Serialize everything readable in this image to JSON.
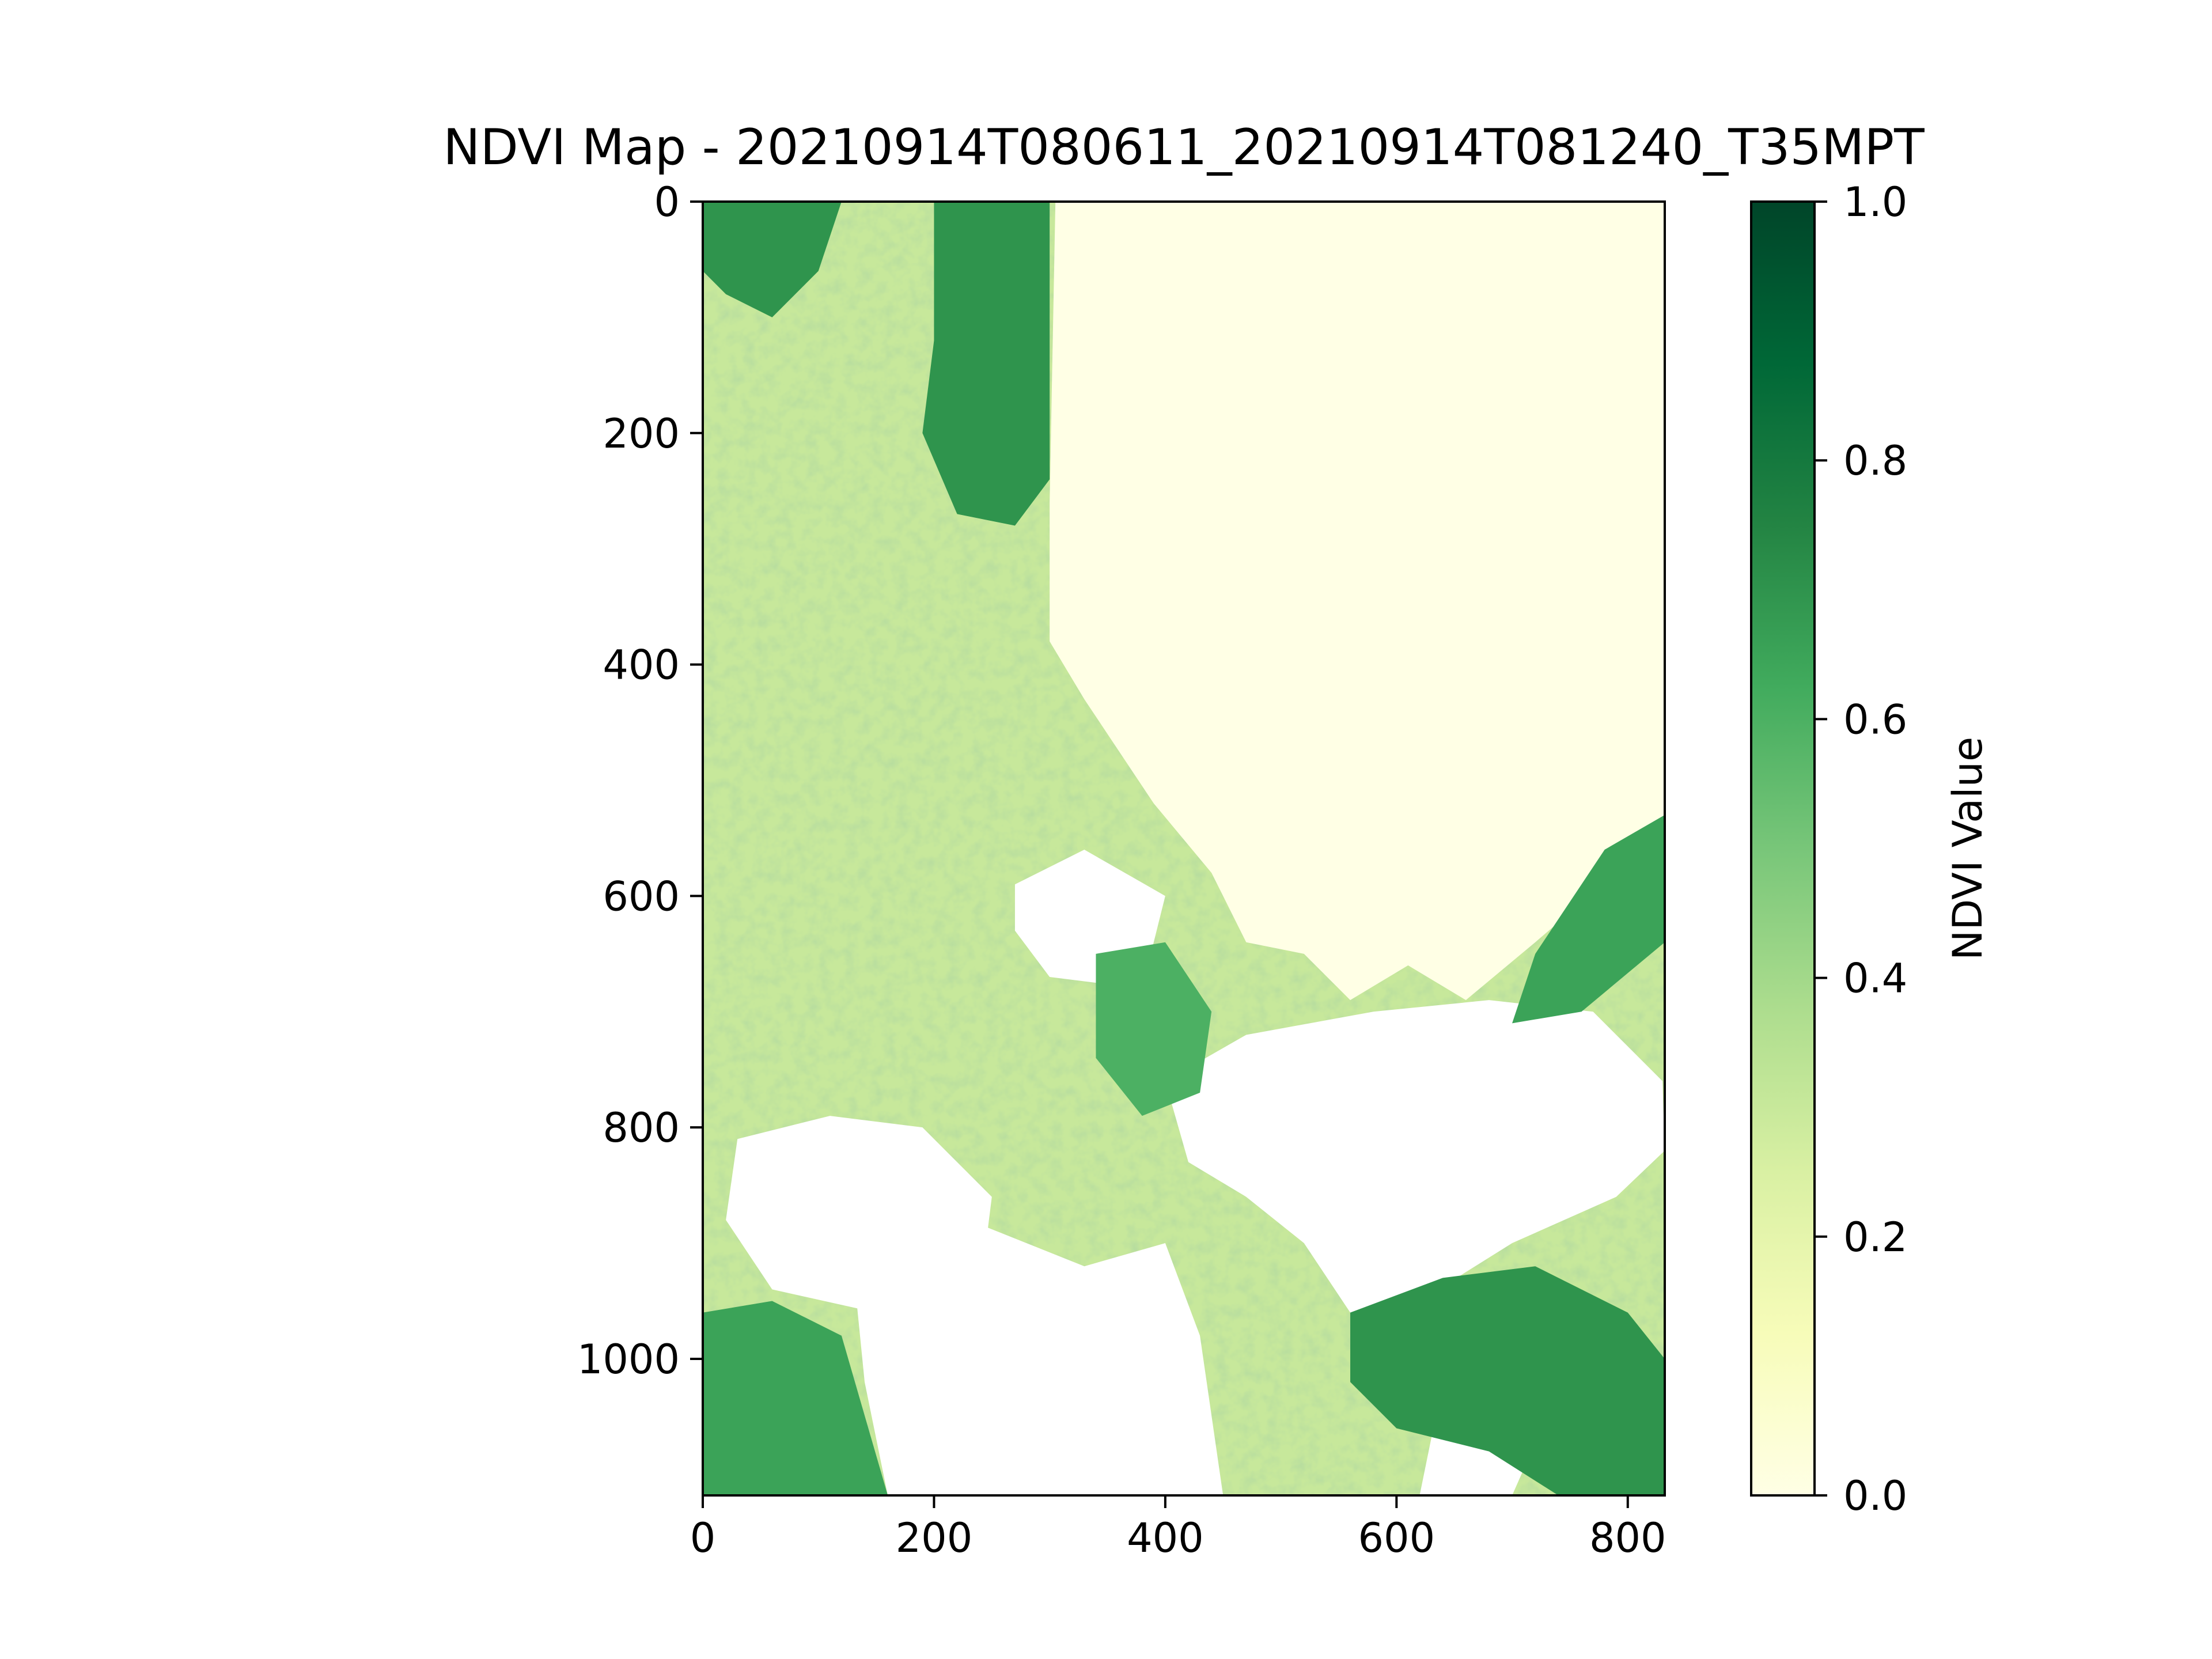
{
  "chart_data": {
    "type": "heatmap",
    "title": "NDVI Map - 20210914T080611_20210914T081240_T35MPT",
    "colormap": "YlGn",
    "image_extent": {
      "x": [
        0,
        832
      ],
      "y": [
        0,
        1118
      ]
    },
    "x_axis": {
      "ticks": [
        0,
        200,
        400,
        600,
        800
      ],
      "tick_labels": [
        "0",
        "200",
        "400",
        "600",
        "800"
      ],
      "lim": [
        0,
        832
      ]
    },
    "y_axis": {
      "ticks": [
        0,
        200,
        400,
        600,
        800,
        1000
      ],
      "tick_labels": [
        "0",
        "200",
        "400",
        "600",
        "800",
        "1000"
      ],
      "lim": [
        1118,
        0
      ],
      "inverted": true
    },
    "colorbar": {
      "label": "NDVI Value",
      "range": [
        0,
        1
      ],
      "ticks": [
        0.0,
        0.2,
        0.4,
        0.6,
        0.8,
        1.0
      ],
      "tick_labels": [
        "0.0",
        "0.2",
        "0.4",
        "0.6",
        "0.8",
        "1.0"
      ],
      "color_stops": [
        {
          "v": 0.0,
          "color": "#ffffe5"
        },
        {
          "v": 0.125,
          "color": "#f7fcb9"
        },
        {
          "v": 0.25,
          "color": "#d9f0a3"
        },
        {
          "v": 0.375,
          "color": "#addd8e"
        },
        {
          "v": 0.5,
          "color": "#78c679"
        },
        {
          "v": 0.625,
          "color": "#41ab5d"
        },
        {
          "v": 0.75,
          "color": "#238443"
        },
        {
          "v": 0.875,
          "color": "#006837"
        },
        {
          "v": 1.0,
          "color": "#004529"
        }
      ]
    },
    "regions": [
      {
        "name": "water-body",
        "value": 0.0,
        "polygon": [
          [
            305,
            0
          ],
          [
            832,
            0
          ],
          [
            832,
            530
          ],
          [
            790,
            580
          ],
          [
            720,
            640
          ],
          [
            660,
            690
          ],
          [
            610,
            660
          ],
          [
            560,
            690
          ],
          [
            520,
            650
          ],
          [
            470,
            640
          ],
          [
            440,
            580
          ],
          [
            390,
            520
          ],
          [
            330,
            430
          ],
          [
            300,
            380
          ],
          [
            300,
            260
          ]
        ]
      },
      {
        "name": "cloud-left",
        "value": null,
        "polygon": [
          [
            30,
            810
          ],
          [
            110,
            790
          ],
          [
            190,
            800
          ],
          [
            250,
            860
          ],
          [
            240,
            940
          ],
          [
            150,
            960
          ],
          [
            60,
            940
          ],
          [
            20,
            880
          ]
        ]
      },
      {
        "name": "cloud-center",
        "value": null,
        "polygon": [
          [
            130,
            920
          ],
          [
            230,
            880
          ],
          [
            330,
            920
          ],
          [
            400,
            900
          ],
          [
            430,
            980
          ],
          [
            450,
            1118
          ],
          [
            160,
            1118
          ],
          [
            140,
            1020
          ]
        ]
      },
      {
        "name": "cloud-right",
        "value": null,
        "polygon": [
          [
            400,
            760
          ],
          [
            470,
            720
          ],
          [
            580,
            700
          ],
          [
            680,
            690
          ],
          [
            770,
            700
          ],
          [
            830,
            760
          ],
          [
            832,
            820
          ],
          [
            790,
            860
          ],
          [
            700,
            900
          ],
          [
            620,
            950
          ],
          [
            560,
            960
          ],
          [
            520,
            900
          ],
          [
            470,
            860
          ],
          [
            420,
            830
          ]
        ]
      },
      {
        "name": "cloud-mid",
        "value": null,
        "polygon": [
          [
            270,
            590
          ],
          [
            330,
            560
          ],
          [
            400,
            600
          ],
          [
            380,
            680
          ],
          [
            300,
            670
          ],
          [
            270,
            630
          ]
        ]
      },
      {
        "name": "cloud-lower-right",
        "value": null,
        "polygon": [
          [
            640,
            1020
          ],
          [
            700,
            1000
          ],
          [
            730,
            1050
          ],
          [
            700,
            1118
          ],
          [
            620,
            1118
          ]
        ]
      },
      {
        "name": "dense-vegetation-north",
        "value": 0.7,
        "polygon": [
          [
            200,
            0
          ],
          [
            300,
            0
          ],
          [
            300,
            240
          ],
          [
            270,
            280
          ],
          [
            220,
            270
          ],
          [
            190,
            200
          ],
          [
            200,
            120
          ]
        ]
      },
      {
        "name": "dense-vegetation-nw",
        "value": 0.7,
        "polygon": [
          [
            0,
            0
          ],
          [
            120,
            0
          ],
          [
            100,
            60
          ],
          [
            60,
            100
          ],
          [
            20,
            80
          ],
          [
            0,
            60
          ]
        ]
      },
      {
        "name": "dense-vegetation-sw",
        "value": 0.65,
        "polygon": [
          [
            0,
            960
          ],
          [
            60,
            950
          ],
          [
            120,
            980
          ],
          [
            160,
            1118
          ],
          [
            0,
            1118
          ]
        ]
      },
      {
        "name": "dense-vegetation-se",
        "value": 0.7,
        "polygon": [
          [
            560,
            960
          ],
          [
            640,
            930
          ],
          [
            720,
            920
          ],
          [
            800,
            960
          ],
          [
            832,
            1000
          ],
          [
            832,
            1118
          ],
          [
            740,
            1118
          ],
          [
            680,
            1080
          ],
          [
            600,
            1060
          ],
          [
            560,
            1020
          ]
        ]
      },
      {
        "name": "dense-vegetation-center",
        "value": 0.6,
        "polygon": [
          [
            340,
            650
          ],
          [
            400,
            640
          ],
          [
            440,
            700
          ],
          [
            430,
            770
          ],
          [
            380,
            790
          ],
          [
            340,
            740
          ]
        ]
      },
      {
        "name": "shore-vegetation-east",
        "value": 0.65,
        "polygon": [
          [
            780,
            560
          ],
          [
            832,
            530
          ],
          [
            832,
            640
          ],
          [
            760,
            700
          ],
          [
            700,
            710
          ],
          [
            720,
            650
          ]
        ]
      }
    ]
  }
}
